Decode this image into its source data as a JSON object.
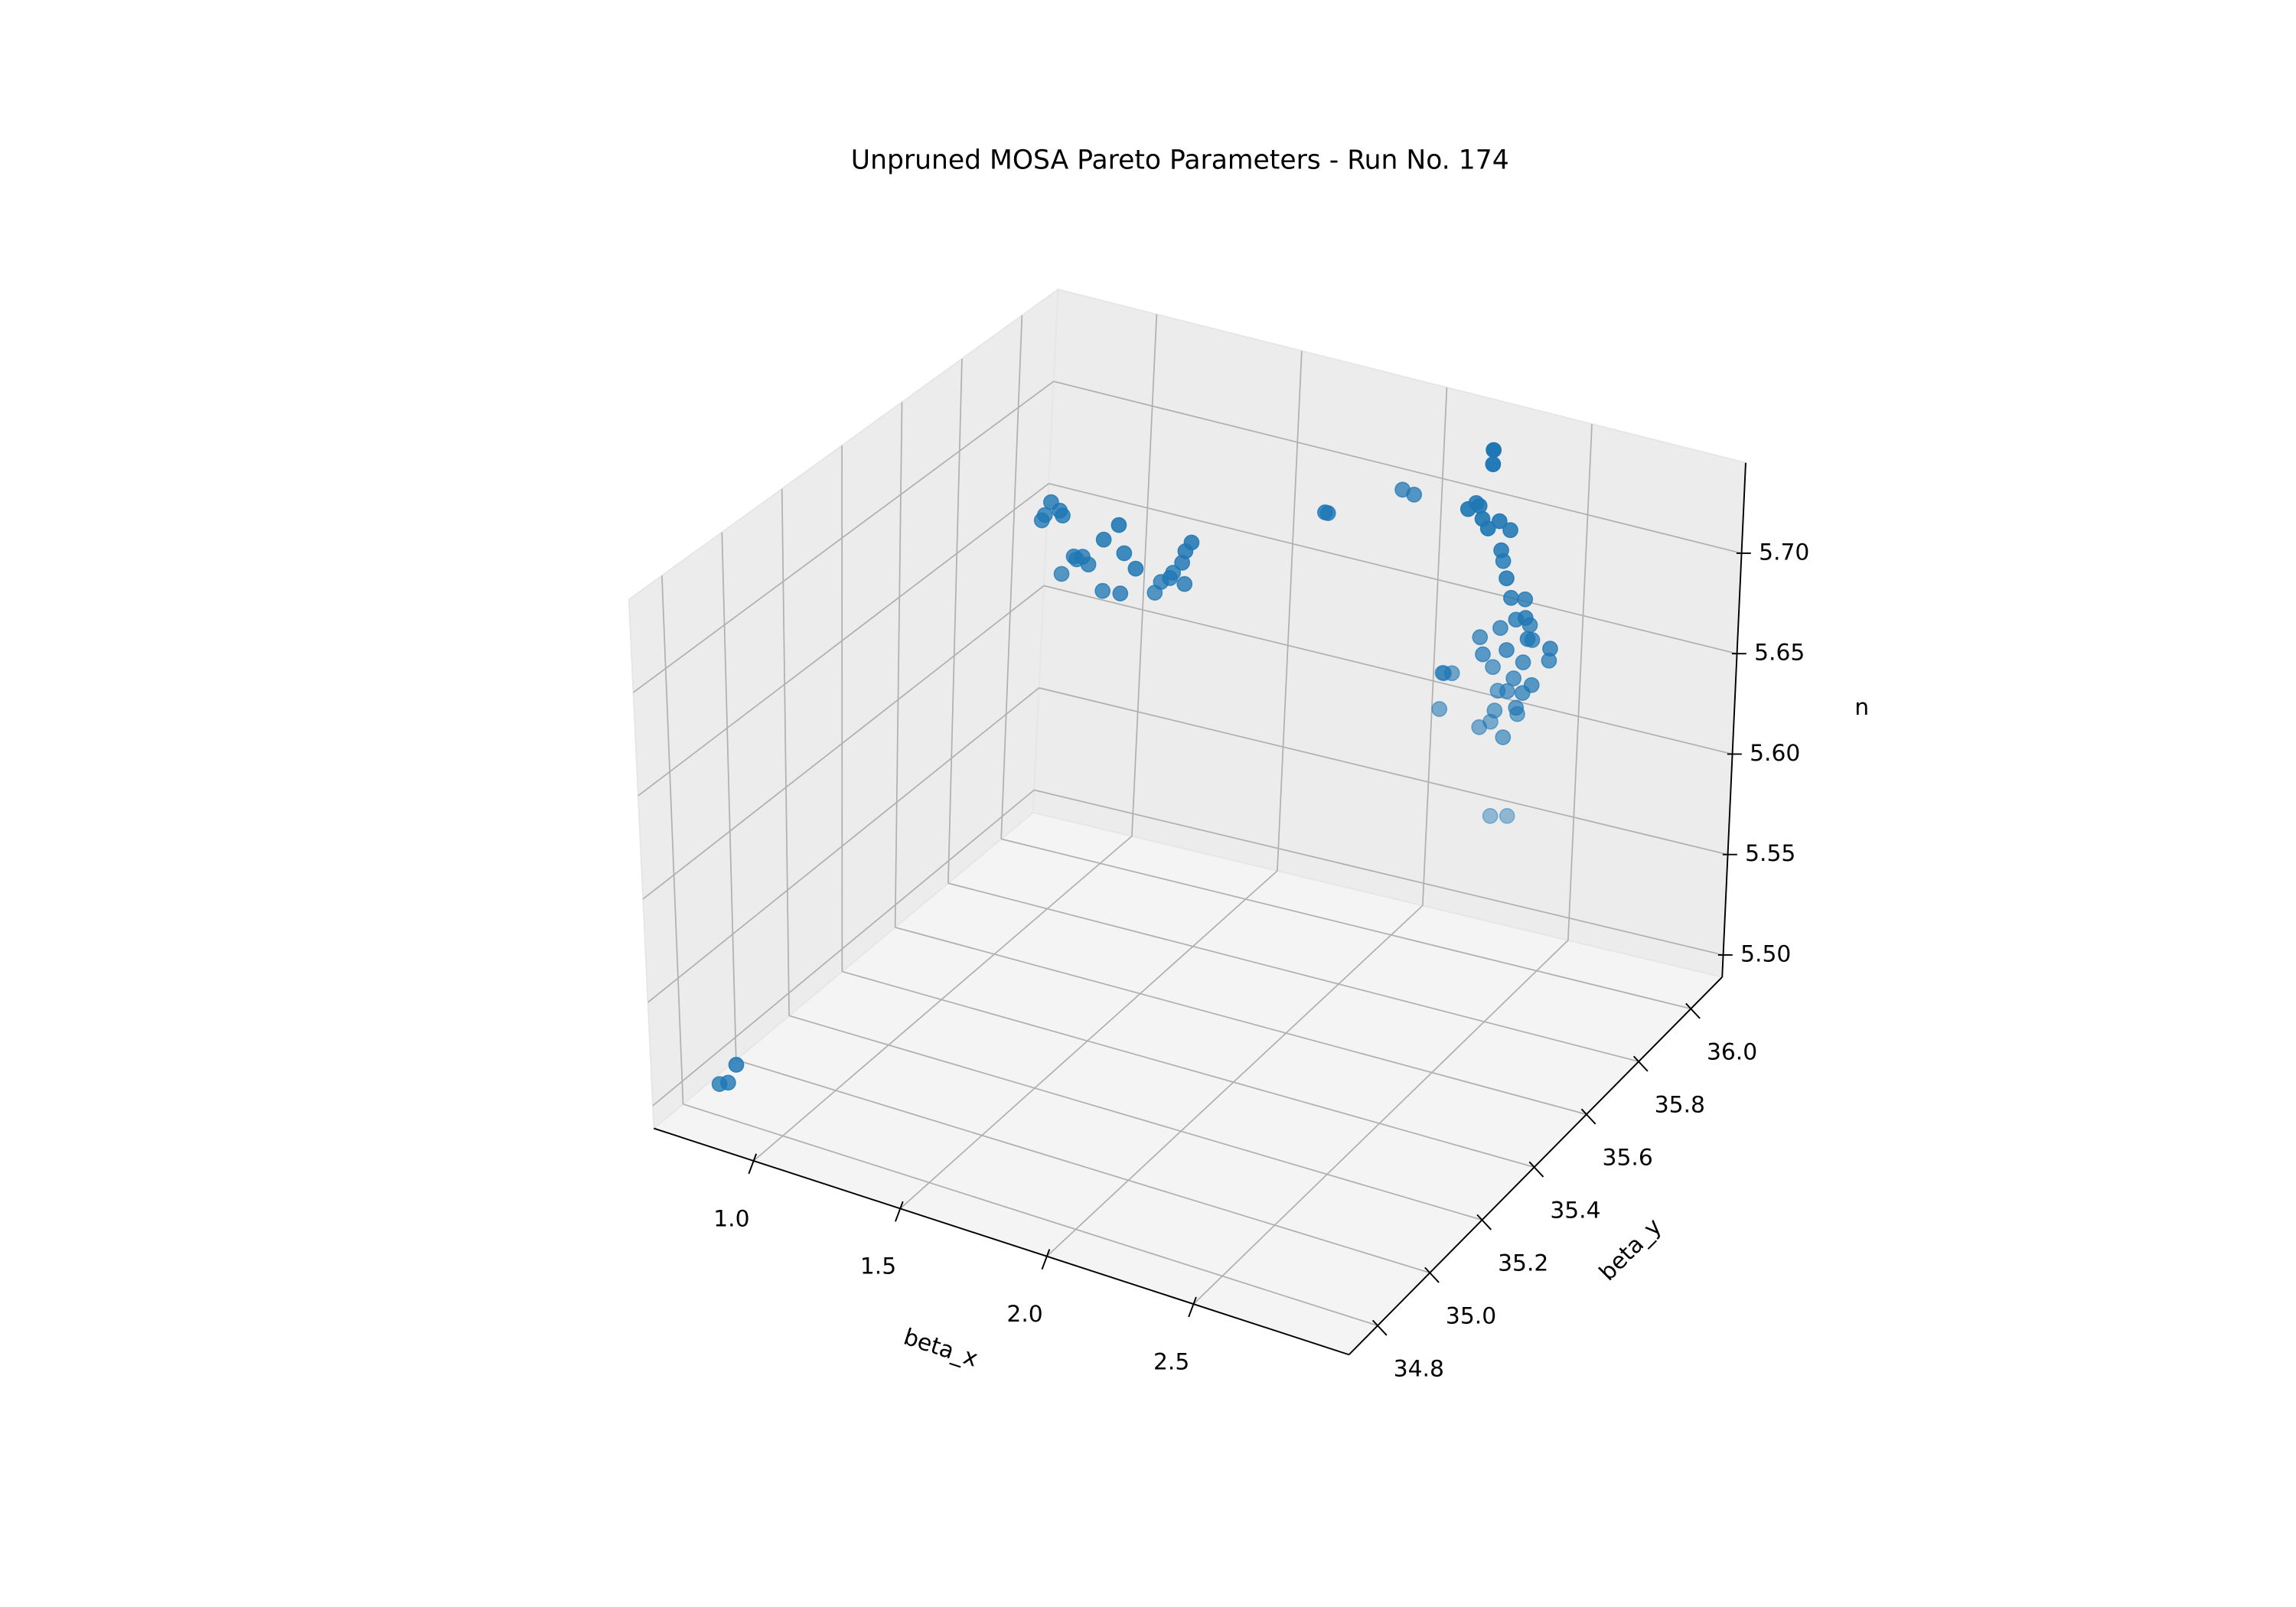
{
  "chart_data": {
    "type": "scatter3d",
    "title": "Unpruned MOSA Pareto Parameters - Run No. 174",
    "xlabel": "beta_x",
    "ylabel": "beta_y",
    "zlabel": "n",
    "x": [
      0.76,
      0.79,
      0.82,
      1.06,
      1.09,
      1.12,
      1.13,
      1.07,
      1.33,
      1.28,
      1.35,
      1.19,
      1.23,
      1.14,
      1.39,
      1.28,
      1.34,
      1.18,
      1.21,
      1.52,
      1.5,
      1.49,
      1.45,
      1.5,
      1.4,
      1.42,
      1.46,
      1.8,
      1.81,
      1.93,
      1.97,
      2.28,
      2.28,
      2.22,
      2.24,
      2.21,
      2.27,
      2.31,
      2.33,
      2.29,
      2.32,
      2.31,
      2.36,
      2.36,
      2.39,
      2.43,
      2.38,
      2.41,
      2.44,
      2.5,
      2.42,
      2.37,
      2.26,
      2.31,
      2.29,
      2.41,
      2.48,
      2.46,
      2.38,
      2.29,
      2.43,
      2.36,
      2.31,
      2.41,
      2.32,
      2.38,
      2.37,
      2.27,
      2.29,
      2.16,
      2.17,
      2.12,
      2.15,
      2.32,
      2.36
    ],
    "y": [
      34.83,
      34.83,
      34.83,
      35.68,
      35.68,
      35.68,
      35.68,
      35.68,
      35.67,
      35.67,
      35.67,
      35.67,
      35.67,
      35.67,
      35.67,
      35.67,
      35.67,
      35.67,
      35.67,
      35.73,
      35.73,
      35.73,
      35.73,
      35.73,
      35.73,
      35.73,
      35.73,
      35.91,
      35.91,
      36.05,
      36.05,
      36.0,
      36.0,
      35.98,
      36.0,
      36.02,
      35.98,
      36.0,
      36.02,
      35.98,
      36.0,
      36.02,
      35.98,
      36.0,
      36.02,
      35.98,
      36.0,
      36.02,
      35.98,
      36.0,
      36.02,
      35.98,
      36.0,
      36.02,
      35.98,
      36.0,
      36.02,
      35.98,
      36.0,
      36.02,
      35.98,
      36.0,
      36.02,
      35.98,
      36.0,
      36.02,
      35.98,
      36.0,
      36.02,
      35.98,
      36.0,
      36.02,
      35.98,
      36.0,
      36.02
    ],
    "z": [
      5.5,
      5.502,
      5.512,
      5.694,
      5.704,
      5.701,
      5.699,
      5.697,
      5.703,
      5.694,
      5.69,
      5.681,
      5.68,
      5.672,
      5.684,
      5.669,
      5.67,
      5.682,
      5.683,
      5.695,
      5.69,
      5.684,
      5.675,
      5.674,
      5.666,
      5.672,
      5.678,
      5.7,
      5.7,
      5.7,
      5.699,
      5.738,
      5.731,
      5.709,
      5.709,
      5.707,
      5.706,
      5.704,
      5.698,
      5.702,
      5.69,
      5.682,
      5.68,
      5.668,
      5.666,
      5.663,
      5.658,
      5.654,
      5.653,
      5.648,
      5.647,
      5.645,
      5.645,
      5.649,
      5.64,
      5.638,
      5.639,
      5.631,
      5.629,
      5.629,
      5.626,
      5.622,
      5.618,
      5.618,
      5.611,
      5.609,
      5.602,
      5.601,
      5.602,
      5.626,
      5.624,
      5.62,
      5.608,
      5.559,
      5.558
    ],
    "color": "#1f77b4",
    "depthshade": true,
    "grid": true,
    "xlim": [
      0.66,
      3.03
    ],
    "ylim": [
      34.69,
      36.12
    ],
    "zlim": [
      5.489,
      5.745
    ],
    "xticks": [
      {
        "value": 1,
        "label": "1.0"
      },
      1.5,
      {
        "value": 2,
        "label": "2.0"
      },
      2.5
    ],
    "yticks": [
      34.8,
      {
        "value": 35,
        "label": "35.0"
      },
      35.2,
      35.4,
      35.6,
      35.8,
      {
        "value": 36,
        "label": "36.0"
      }
    ],
    "zticks": [
      {
        "value": 5.5,
        "label": "5.50"
      },
      5.55,
      {
        "value": 5.6,
        "label": "5.60"
      },
      5.65,
      {
        "value": 5.7,
        "label": "5.70"
      }
    ]
  }
}
